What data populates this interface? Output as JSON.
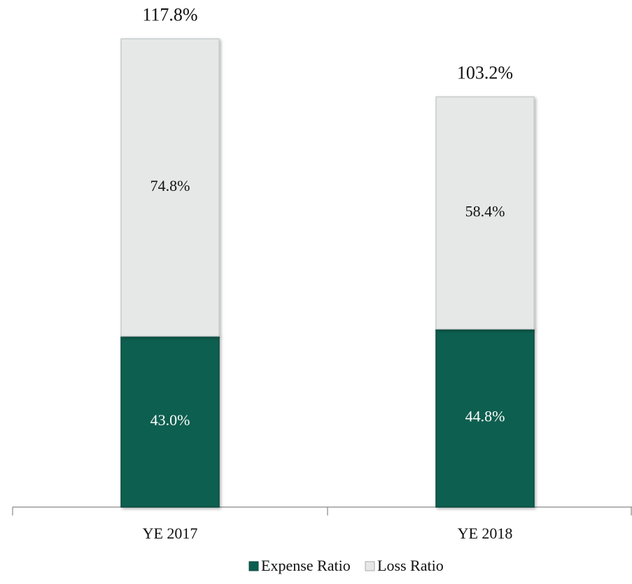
{
  "chart_data": {
    "type": "stacked_bar",
    "categories": [
      "YE 2017",
      "YE 2018"
    ],
    "series": [
      {
        "name": "Expense Ratio",
        "color": "#0b5e4f",
        "values": [
          43.0,
          44.8
        ],
        "value_labels": [
          "43.0%",
          "44.8%"
        ]
      },
      {
        "name": "Loss Ratio",
        "color": "#e6e8e8",
        "values": [
          74.8,
          58.4
        ],
        "value_labels": [
          "74.8%",
          "58.4%"
        ]
      }
    ],
    "totals": [
      117.8,
      103.2
    ],
    "total_labels": [
      "117.8%",
      "103.2%"
    ],
    "ylim": [
      0,
      120
    ],
    "legend": "bottom"
  }
}
